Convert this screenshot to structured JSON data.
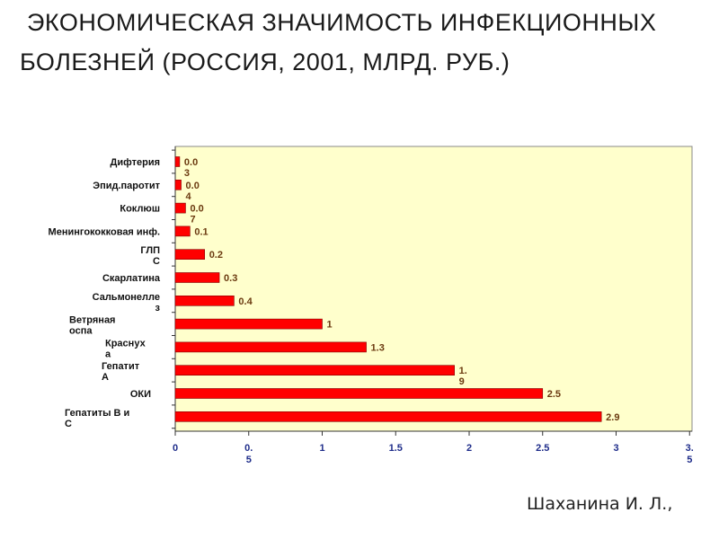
{
  "title_line1": "ЭКОНОМИЧЕСКАЯ ЗНАЧИМОСТЬ ИНФЕКЦИОННЫХ",
  "title_line2": "БОЛЕЗНЕЙ (РОССИЯ, 2001, МЛРД. РУБ.)",
  "author": "Шаханина И. Л.,",
  "colors": {
    "bar": "#ff0000",
    "bar_border": "#800000",
    "plot_bg": "#ffffcc",
    "tick_label": "#1f2d8a",
    "value_label": "#6b3a10"
  },
  "chart_data": {
    "type": "bar",
    "orientation": "horizontal",
    "categories": [
      "Дифтерия",
      "Эпид.паротит",
      "Коклюш",
      "Менингококковая  инф.",
      "ГЛПС",
      "Скарлатина",
      "Сальмонеллез",
      "Ветряная оспа",
      "Краснуха",
      "Гепатит А",
      "ОКИ",
      "Гепатиты В и С"
    ],
    "category_lines": [
      [
        "Дифтерия"
      ],
      [
        "Эпид.паротит"
      ],
      [
        "Коклюш"
      ],
      [
        "Менингококковая  инф."
      ],
      [
        "ГЛП",
        "С"
      ],
      [
        "Скарлатина"
      ],
      [
        "Сальмонелле",
        "з"
      ],
      [
        "Ветряная",
        "оспа"
      ],
      [
        "Краснух",
        "а"
      ],
      [
        "Гепатит",
        "А"
      ],
      [
        "ОКИ"
      ],
      [
        "Гепатиты В и",
        "С"
      ]
    ],
    "values": [
      0.03,
      0.04,
      0.07,
      0.1,
      0.2,
      0.3,
      0.4,
      1,
      1.3,
      1.9,
      2.5,
      2.9
    ],
    "value_label_lines": [
      [
        "0.0",
        "3"
      ],
      [
        "0.0",
        "4"
      ],
      [
        "0.0",
        "7"
      ],
      [
        "0.1"
      ],
      [
        "0.2"
      ],
      [
        "0.3"
      ],
      [
        "0.4"
      ],
      [
        "1"
      ],
      [
        "1.3"
      ],
      [
        "1.",
        "9"
      ],
      [
        "2.5"
      ],
      [
        "2.9"
      ]
    ],
    "x_ticks": [
      0,
      0.5,
      1,
      1.5,
      2,
      2.5,
      3,
      3.5
    ],
    "x_tick_label_lines": [
      [
        "0"
      ],
      [
        "0.",
        "5"
      ],
      [
        "1"
      ],
      [
        "1.5"
      ],
      [
        "2"
      ],
      [
        "2.5"
      ],
      [
        "3"
      ],
      [
        "3.",
        "5"
      ]
    ],
    "xlim": [
      0,
      3.5
    ],
    "grid": false,
    "legend": "none"
  }
}
